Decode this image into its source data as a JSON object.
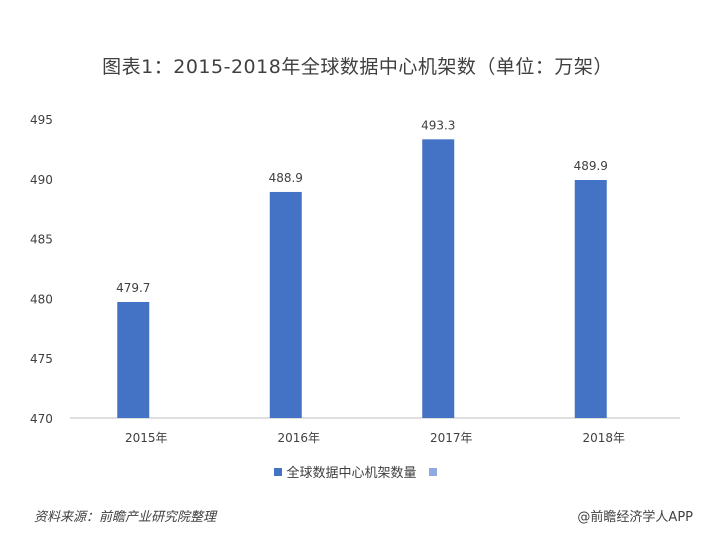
{
  "chart_data": {
    "type": "bar",
    "title": "图表1：2015-2018年全球数据中心机架数（单位：万架）",
    "categories": [
      "2015年",
      "2016年",
      "2017年",
      "2018年"
    ],
    "series": [
      {
        "name": "全球数据中心机架数量",
        "values": [
          479.7,
          488.9,
          493.3,
          489.9
        ],
        "color": "#4472C4"
      }
    ],
    "data_labels": [
      "479.7",
      "488.9",
      "493.3",
      "489.9"
    ],
    "ylim": [
      470,
      495
    ],
    "yticks": [
      470,
      475,
      480,
      485,
      490,
      495
    ],
    "ytick_labels": [
      "470",
      "475",
      "480",
      "485",
      "490",
      "495"
    ],
    "grid": false,
    "legend": "bottom",
    "legend_extra_color": "#8FAADC"
  },
  "footer": {
    "source": "资料来源：前瞻产业研究院整理",
    "brand": "@前瞻经济学人APP"
  },
  "colors": {
    "axis": "#bfbfbf",
    "text": "#404040"
  }
}
